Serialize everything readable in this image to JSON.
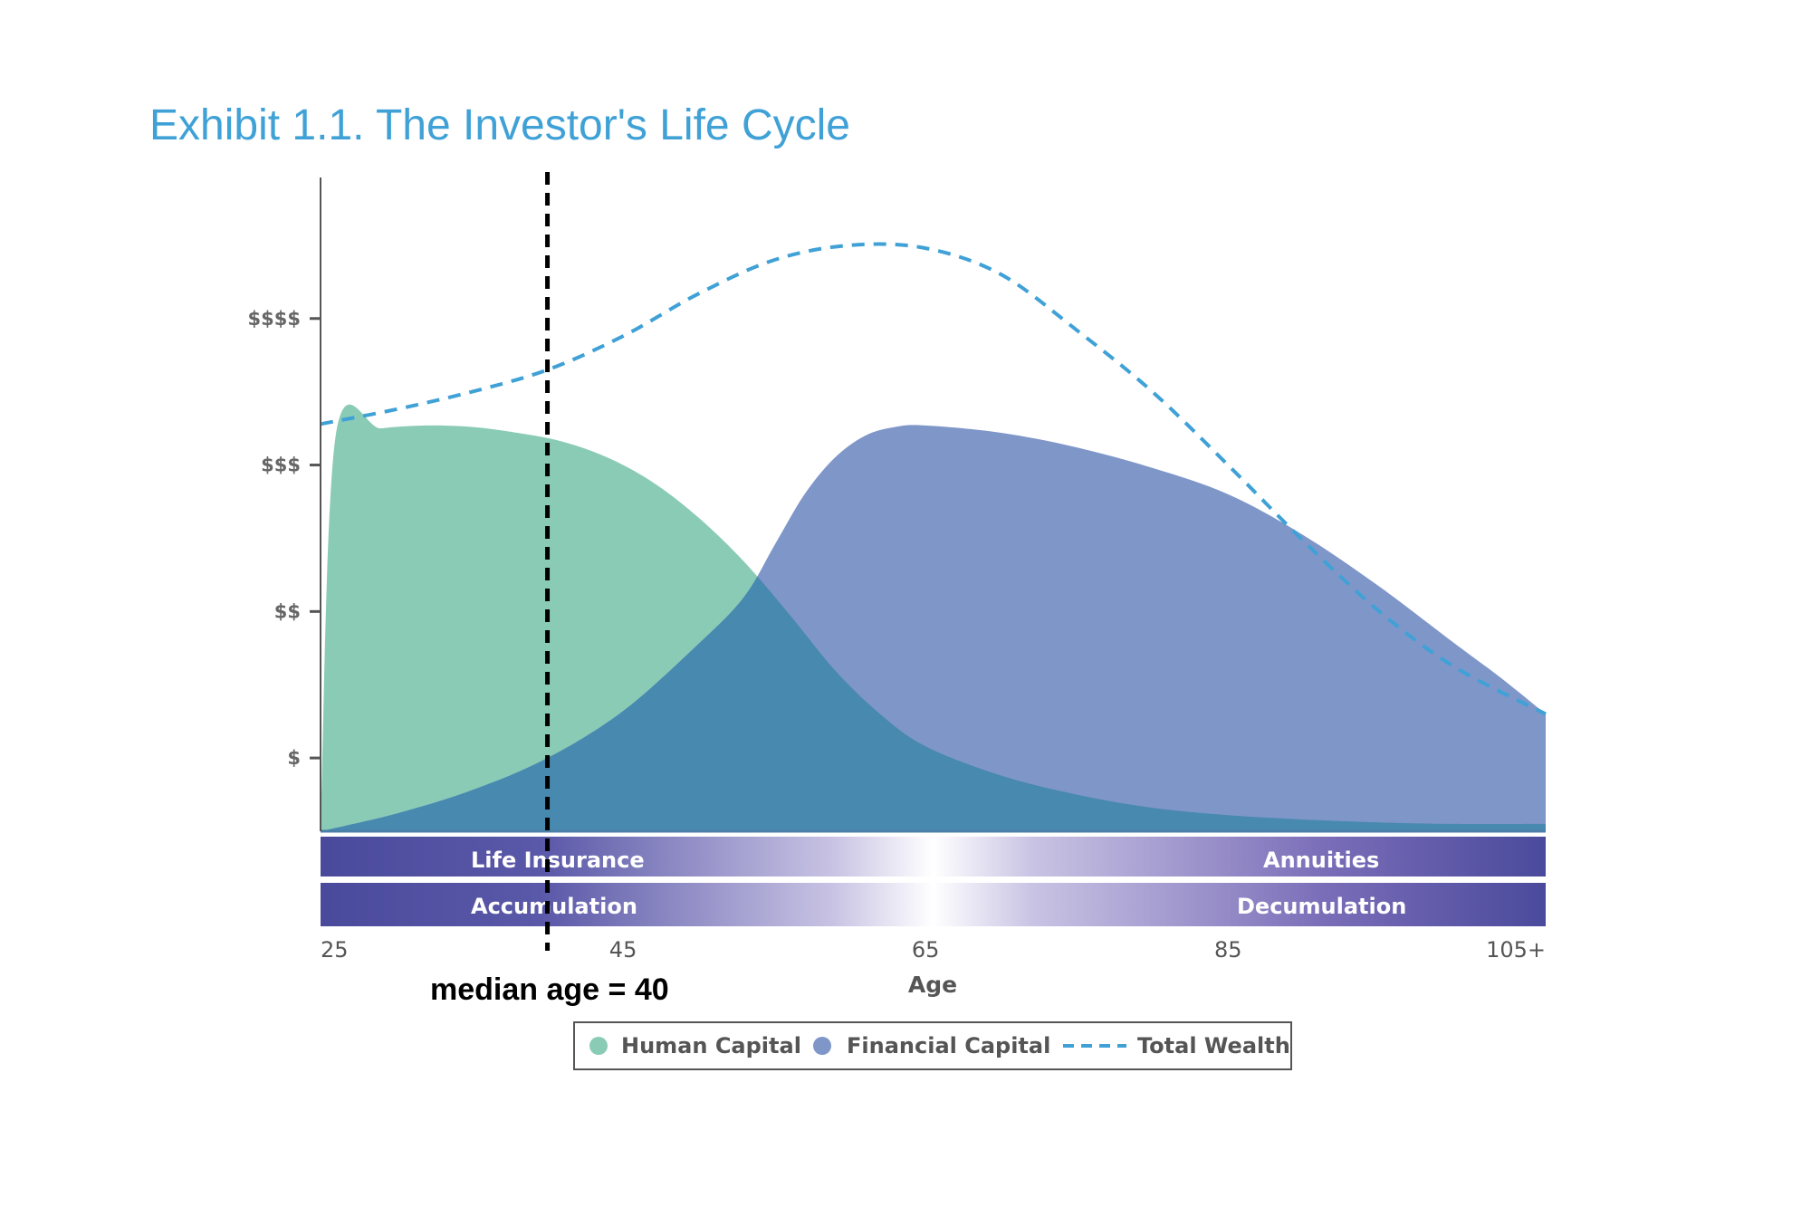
{
  "chart_data": {
    "type": "area",
    "title": "Exhibit 1.1. The Investor's Life Cycle",
    "xlabel": "Age",
    "ylabel": "",
    "xlim": [
      25,
      106
    ],
    "ylim": [
      0,
      4.5
    ],
    "x_ticks": [
      {
        "value": 25,
        "label": "25"
      },
      {
        "value": 45,
        "label": "45"
      },
      {
        "value": 65,
        "label": "65"
      },
      {
        "value": 85,
        "label": "85"
      },
      {
        "value": 106,
        "label": "105+"
      }
    ],
    "y_ticks": [
      {
        "value": 0.5,
        "label": "$"
      },
      {
        "value": 1.5,
        "label": "$$"
      },
      {
        "value": 2.5,
        "label": "$$$"
      },
      {
        "value": 3.5,
        "label": "$$$$"
      }
    ],
    "series": [
      {
        "name": "Human Capital",
        "kind": "area",
        "color": "#8acbb6",
        "x": [
          25,
          26,
          29,
          32,
          35,
          38,
          41,
          44,
          47,
          50,
          53,
          56,
          59,
          62,
          65,
          70,
          75,
          80,
          85,
          90,
          95,
          100,
          106
        ],
        "y": [
          0.02,
          2.7,
          2.75,
          2.77,
          2.76,
          2.72,
          2.66,
          2.55,
          2.38,
          2.14,
          1.84,
          1.48,
          1.1,
          0.8,
          0.58,
          0.38,
          0.25,
          0.16,
          0.11,
          0.08,
          0.06,
          0.05,
          0.05
        ]
      },
      {
        "name": "Financial Capital",
        "kind": "area",
        "color": "#7f96c9",
        "x": [
          25,
          30,
          35,
          40,
          45,
          50,
          53,
          55,
          57,
          59,
          61,
          63,
          65,
          70,
          75,
          80,
          85,
          90,
          95,
          100,
          103,
          106
        ],
        "y": [
          0.0,
          0.12,
          0.28,
          0.5,
          0.82,
          1.28,
          1.6,
          1.95,
          2.3,
          2.55,
          2.7,
          2.76,
          2.77,
          2.72,
          2.62,
          2.48,
          2.3,
          2.02,
          1.67,
          1.28,
          1.05,
          0.8
        ]
      },
      {
        "name": "Total Wealth",
        "kind": "dashed-line",
        "color": "#3fa1d6",
        "x": [
          25,
          30,
          35,
          40,
          45,
          50,
          55,
          60,
          65,
          70,
          75,
          80,
          85,
          90,
          95,
          100,
          106
        ],
        "y": [
          2.78,
          2.88,
          3.0,
          3.15,
          3.38,
          3.67,
          3.9,
          4.0,
          3.98,
          3.8,
          3.42,
          3.0,
          2.5,
          1.98,
          1.5,
          1.12,
          0.8
        ]
      }
    ],
    "bands": [
      {
        "left_label": "Life Insurance",
        "right_label": "Annuities"
      },
      {
        "left_label": "Accumulation",
        "right_label": "Decumulation"
      }
    ],
    "annotation": {
      "x": 40,
      "text": "median age = 40",
      "style": "dashed-vertical-line"
    },
    "legend": {
      "position": "bottom-center",
      "items": [
        {
          "label": "Human Capital",
          "color": "#8acbb6",
          "marker": "circle"
        },
        {
          "label": "Financial Capital",
          "color": "#7f96c9",
          "marker": "circle"
        },
        {
          "label": "Total Wealth",
          "color": "#3fa1d6",
          "marker": "dashed-line"
        }
      ]
    },
    "grid": false,
    "colors": {
      "overlap": "#4889b0",
      "band_dark": "#4a4a9c",
      "axis": "#555555"
    }
  }
}
